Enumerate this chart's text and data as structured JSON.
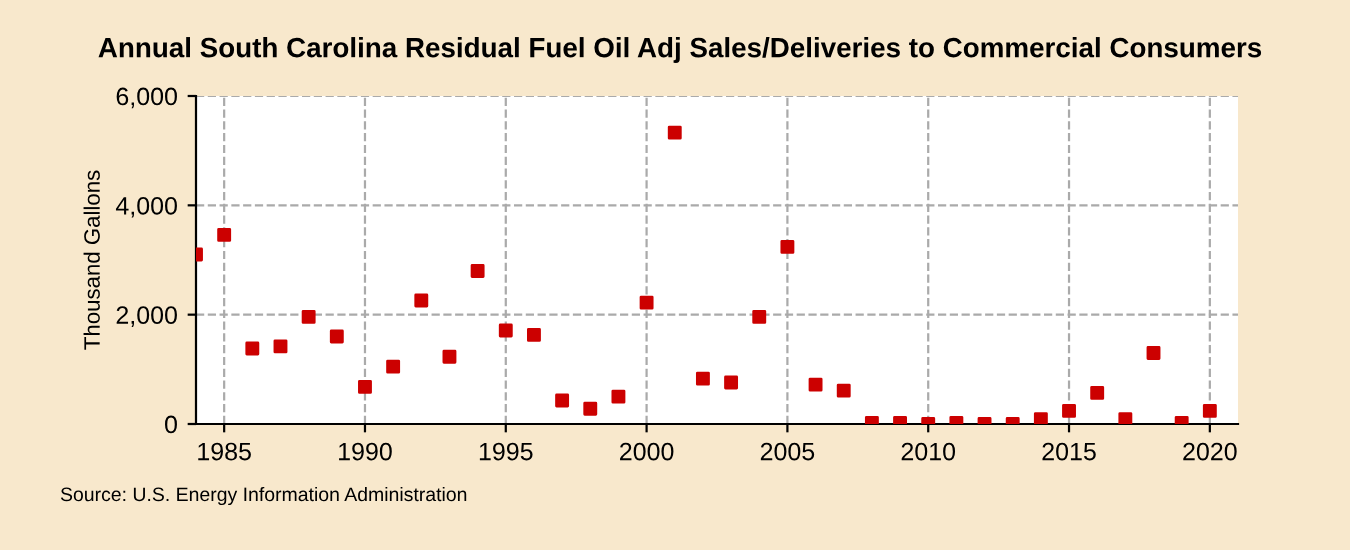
{
  "chart_data": {
    "type": "scatter",
    "title": "Annual South Carolina Residual Fuel Oil Adj Sales/Deliveries to Commercial Consumers",
    "ylabel": "Thousand Gallons",
    "x": [
      1984,
      1985,
      1986,
      1987,
      1988,
      1989,
      1990,
      1991,
      1992,
      1993,
      1994,
      1995,
      1996,
      1997,
      1998,
      1999,
      2000,
      2001,
      2002,
      2003,
      2004,
      2005,
      2006,
      2007,
      2008,
      2009,
      2010,
      2011,
      2012,
      2013,
      2014,
      2015,
      2016,
      2017,
      2018,
      2019,
      2020
    ],
    "series": [
      {
        "color": "#cc0000",
        "values": [
          3100,
          3460,
          1380,
          1420,
          1960,
          1600,
          680,
          1050,
          2260,
          1230,
          2800,
          1710,
          1630,
          430,
          280,
          500,
          2220,
          5330,
          830,
          760,
          1960,
          3240,
          720,
          610,
          20,
          20,
          0,
          20,
          0,
          0,
          90,
          240,
          570,
          90,
          1300,
          20,
          240
        ]
      }
    ],
    "xlim": [
      1984,
      2021
    ],
    "xticks": [
      1985,
      1990,
      1995,
      2000,
      2005,
      2010,
      2015,
      2020
    ],
    "ylim": [
      0,
      6000
    ],
    "yticks": [
      {
        "value": 0,
        "label": "0"
      },
      {
        "value": 2000,
        "label": "2,000"
      },
      {
        "value": 4000,
        "label": "4,000"
      },
      {
        "value": 6000,
        "label": "6,000"
      }
    ],
    "grid": true,
    "marker": "square",
    "annotations": [
      "Source: U.S. Energy Information Administration"
    ]
  }
}
